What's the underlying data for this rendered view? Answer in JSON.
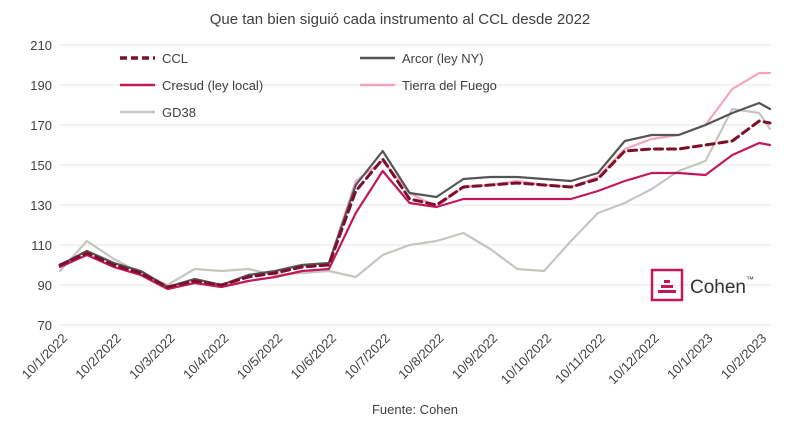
{
  "chart_data": {
    "type": "line",
    "title": "Que tan bien siguió cada instrumento al CCL desde 2022",
    "source": "Fuente: Cohen",
    "xlabel": "",
    "ylabel": "",
    "ylim": [
      70,
      210
    ],
    "yticks": [
      70,
      90,
      110,
      130,
      150,
      170,
      190,
      210
    ],
    "x_tick_labels": [
      "10/1/2022",
      "10/2/2022",
      "10/3/2022",
      "10/4/2022",
      "10/5/2022",
      "10/6/2022",
      "10/7/2022",
      "10/8/2022",
      "10/9/2022",
      "10/10/2022",
      "10/11/2022",
      "10/12/2022",
      "10/1/2023",
      "10/2/2023"
    ],
    "grid": "horizontal",
    "legend": "top-left",
    "x": [
      0,
      0.5,
      1,
      1.5,
      2,
      2.5,
      3,
      3.5,
      4,
      4.5,
      5,
      5.5,
      6,
      6.5,
      7,
      7.5,
      8,
      8.5,
      9,
      9.5,
      10,
      10.5,
      11,
      11.5,
      12,
      12.5,
      13,
      13.2
    ],
    "series": [
      {
        "name": "CCL",
        "color": "#7B0F2C",
        "dash": true,
        "values": [
          100,
          106,
          100,
          96,
          89,
          92,
          90,
          94,
          96,
          99,
          100,
          137,
          153,
          133,
          130,
          139,
          140,
          141,
          140,
          139,
          143,
          157,
          158,
          158,
          160,
          162,
          172,
          171
        ]
      },
      {
        "name": "Arcor (ley NY)",
        "color": "#555555",
        "dash": false,
        "values": [
          100,
          107,
          101,
          97,
          89,
          93,
          90,
          95,
          97,
          100,
          101,
          140,
          157,
          136,
          134,
          143,
          144,
          144,
          143,
          142,
          146,
          162,
          165,
          165,
          170,
          176,
          181,
          178
        ]
      },
      {
        "name": "Cresud (ley local)",
        "color": "#C2185B",
        "dash": false,
        "values": [
          99,
          105,
          99,
          95,
          88,
          91,
          89,
          92,
          94,
          97,
          98,
          126,
          147,
          131,
          129,
          133,
          133,
          133,
          133,
          133,
          137,
          142,
          146,
          146,
          145,
          155,
          161,
          160
        ]
      },
      {
        "name": "Tierra del Fuego",
        "color": "#F4A6C0",
        "dash": false,
        "values": [
          100,
          107,
          101,
          97,
          89,
          93,
          90,
          95,
          97,
          100,
          101,
          142,
          152,
          136,
          129,
          139,
          140,
          142,
          140,
          139,
          144,
          158,
          163,
          165,
          170,
          188,
          196,
          196
        ]
      },
      {
        "name": "GD38",
        "color": "#C7C5C0",
        "dash": false,
        "values": [
          97,
          112,
          103,
          96,
          90,
          98,
          97,
          98,
          95,
          96,
          97,
          94,
          105,
          110,
          112,
          116,
          108,
          98,
          97,
          112,
          126,
          131,
          138,
          147,
          152,
          178,
          176,
          168
        ]
      }
    ]
  },
  "logo": {
    "text": "Cohen",
    "mark": "™",
    "color": "#C2185B"
  }
}
